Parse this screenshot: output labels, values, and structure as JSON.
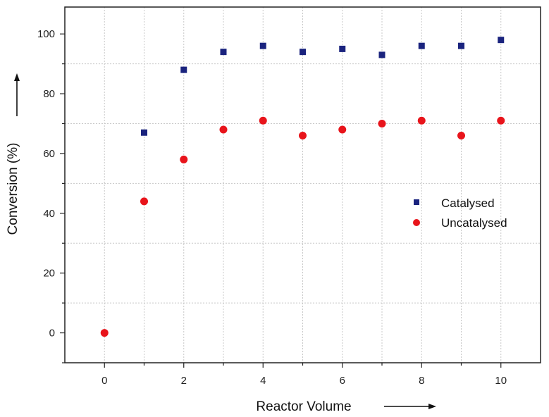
{
  "chart_data": {
    "type": "scatter",
    "title": "",
    "xlabel": "Reactor Volume",
    "ylabel": "Conversion (%)",
    "xlim": [
      -1,
      11
    ],
    "ylim": [
      -10,
      109
    ],
    "xticks": [
      0,
      2,
      4,
      6,
      8,
      10
    ],
    "yticks": [
      0,
      20,
      40,
      60,
      80,
      100
    ],
    "grid": true,
    "legend_position": "right",
    "series": [
      {
        "name": "Catalysed",
        "marker": "square",
        "color": "#1a237e",
        "x": [
          1,
          2,
          3,
          4,
          5,
          6,
          7,
          8,
          9,
          10
        ],
        "y": [
          67,
          88,
          94,
          96,
          94,
          95,
          93,
          96,
          96,
          98
        ]
      },
      {
        "name": "Uncatalysed",
        "marker": "circle",
        "color": "#e8141b",
        "x": [
          0,
          1,
          2,
          3,
          4,
          5,
          6,
          7,
          8,
          9,
          10
        ],
        "y": [
          0,
          44,
          58,
          68,
          71,
          66,
          68,
          70,
          71,
          66,
          71
        ]
      }
    ]
  }
}
